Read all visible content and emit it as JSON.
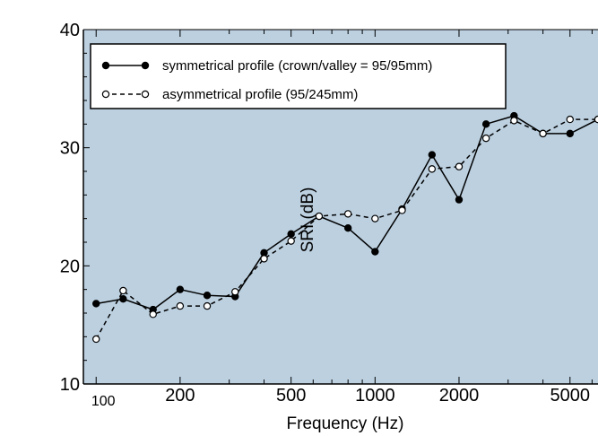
{
  "chart_data": {
    "type": "line",
    "xlabel": "Frequency (Hz)",
    "ylabel": "SRI (dB)",
    "x_scale": "log",
    "xlim": [
      90,
      6300
    ],
    "ylim": [
      10,
      40
    ],
    "grid": false,
    "legend_position": "top-left",
    "x_tick_labels": [
      "100",
      "200",
      "500",
      "1000",
      "2000",
      "5000"
    ],
    "x_ticks": [
      100,
      200,
      500,
      1000,
      2000,
      5000
    ],
    "y_ticks": [
      10,
      20,
      30,
      40
    ],
    "x": [
      100,
      125,
      160,
      200,
      250,
      315,
      400,
      500,
      630,
      800,
      1000,
      1250,
      1600,
      2000,
      2500,
      3150,
      4000,
      5000,
      6300
    ],
    "series": [
      {
        "name": "symmetrical profile (crown/valley = 95/95mm)",
        "marker": "filled-circle",
        "line_style": "solid",
        "values": [
          16.8,
          17.2,
          16.3,
          18.0,
          17.5,
          17.4,
          21.1,
          22.7,
          24.2,
          23.2,
          21.2,
          24.8,
          29.4,
          25.6,
          32.0,
          32.7,
          31.2,
          31.2,
          32.4
        ]
      },
      {
        "name": "asymmetrical profile (95/245mm)",
        "marker": "open-circle",
        "line_style": "dashed",
        "values": [
          13.8,
          17.9,
          15.9,
          16.6,
          16.6,
          17.8,
          20.6,
          22.1,
          24.2,
          24.4,
          24.0,
          24.7,
          28.2,
          28.4,
          30.8,
          32.3,
          31.2,
          32.4,
          32.4
        ]
      }
    ]
  }
}
